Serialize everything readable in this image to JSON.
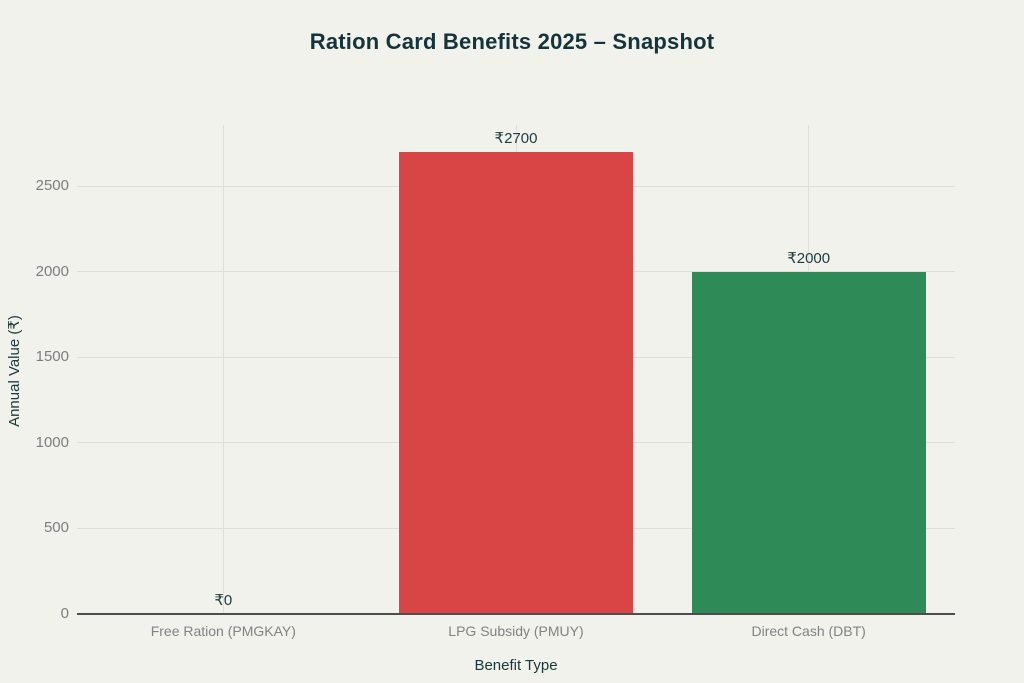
{
  "chart_data": {
    "type": "bar",
    "title": "Ration Card Benefits 2025 – Snapshot",
    "xlabel": "Benefit Type",
    "ylabel": "Annual Value (₹)",
    "categories": [
      "Free Ration (PMGKAY)",
      "LPG Subsidy (PMUY)",
      "Direct Cash (DBT)"
    ],
    "values": [
      0,
      2700,
      2000
    ],
    "bar_labels": [
      "₹0",
      "₹2700",
      "₹2000"
    ],
    "bar_colors": [
      "#d94545",
      "#d94545",
      "#2e8b57"
    ],
    "yticks": [
      0,
      500,
      1000,
      1500,
      2000,
      2500
    ],
    "ylim": [
      0,
      2857
    ],
    "grid": true,
    "legend": false
  },
  "colors": {
    "background": "#f1f2ec",
    "title_text": "#14333a",
    "axis_title_text": "#17383c",
    "tick_text": "#7d7d7d",
    "gridline": "#dededa",
    "axis_line": "#4d4d4d",
    "bar_red": "#d94545",
    "bar_green": "#2e8b57"
  }
}
